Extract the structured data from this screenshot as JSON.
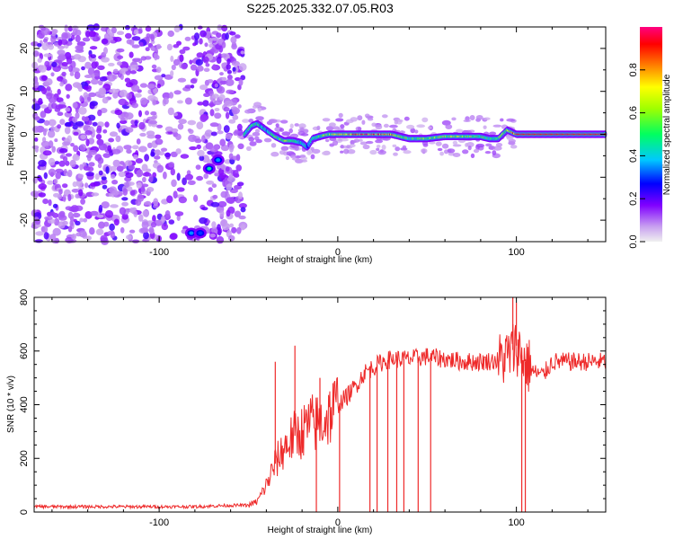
{
  "figure_title": "S225.2025.332.07.05.R03",
  "chart_data": [
    {
      "type": "heatmap",
      "title": "S225.2025.332.07.05.R03",
      "xlabel": "Height of straight line (km)",
      "ylabel": "Frequency (Hz)",
      "xlim": [
        -170,
        150
      ],
      "ylim": [
        -25,
        25
      ],
      "xticks": [
        -100,
        0,
        100
      ],
      "yticks": [
        -20,
        -10,
        0,
        10,
        20
      ],
      "colorbar": {
        "label": "Normalized spectral amplitude",
        "range": [
          0,
          1
        ],
        "ticks": [
          "0.0",
          "0.2",
          "0.4",
          "0.6",
          "0.8"
        ],
        "colormap": [
          "#f0f0f0",
          "#8000ff",
          "#0000ff",
          "#00ffff",
          "#00ff00",
          "#ffff00",
          "#ff0000",
          "#ff00ff"
        ]
      },
      "noise_region_x": [
        -170,
        -53
      ],
      "ridge": {
        "x": [
          -52,
          -48,
          -45,
          -40,
          -35,
          -30,
          -25,
          -20,
          -17,
          -14,
          -10,
          -5,
          0,
          10,
          20,
          30,
          35,
          40,
          50,
          60,
          70,
          80,
          85,
          90,
          95,
          100,
          150
        ],
        "y": [
          0,
          2,
          2.5,
          1,
          -0.5,
          -1.5,
          -1.5,
          -2,
          -3,
          -1,
          -0.5,
          0,
          0,
          0,
          0,
          0,
          -0.5,
          -1,
          -1,
          -0.5,
          -0.5,
          -0.5,
          -1,
          -1,
          1,
          0,
          0
        ],
        "amplitude": [
          0.45,
          0.5,
          0.45,
          0.4,
          0.5,
          0.6,
          0.55,
          0.45,
          0.35,
          0.45,
          0.5,
          0.6,
          0.7,
          0.85,
          0.85,
          0.8,
          0.6,
          0.5,
          0.55,
          0.6,
          0.6,
          0.55,
          0.5,
          0.5,
          0.6,
          0.9,
          0.9
        ]
      },
      "blobs": [
        {
          "x": -72,
          "y": -8,
          "amplitude": 0.45
        },
        {
          "x": -67,
          "y": -6,
          "amplitude": 0.35
        },
        {
          "x": -82,
          "y": -23,
          "amplitude": 0.35
        },
        {
          "x": -77,
          "y": -23,
          "amplitude": 0.3
        }
      ]
    },
    {
      "type": "line",
      "xlabel": "Height of straight line (km)",
      "ylabel": "SNR (10 * v/v)",
      "xlim": [
        -170,
        150
      ],
      "ylim": [
        0,
        800
      ],
      "xticks": [
        -100,
        0,
        100
      ],
      "yticks": [
        0,
        200,
        400,
        600,
        800
      ],
      "series": [
        {
          "name": "SNR",
          "color": "#ee2a2a",
          "x": [
            -170,
            -80,
            -60,
            -50,
            -45,
            -40,
            -35,
            -30,
            -25,
            -20,
            -15,
            -10,
            -5,
            0,
            5,
            10,
            15,
            20,
            25,
            30,
            40,
            50,
            60,
            70,
            80,
            90,
            95,
            100,
            105,
            110,
            115,
            120,
            130,
            140,
            150
          ],
          "values": [
            20,
            20,
            25,
            25,
            40,
            100,
            180,
            240,
            280,
            300,
            330,
            330,
            360,
            400,
            430,
            470,
            520,
            540,
            560,
            570,
            570,
            580,
            570,
            560,
            560,
            565,
            580,
            620,
            560,
            520,
            510,
            560,
            560,
            560,
            560
          ]
        }
      ],
      "dropouts_x": [
        -12,
        1,
        18,
        22,
        28,
        33,
        37,
        45,
        52,
        103,
        105
      ],
      "spikes": [
        {
          "x": -35,
          "value": 560
        },
        {
          "x": -24,
          "value": 620
        },
        {
          "x": -10,
          "value": 500
        },
        {
          "x": 98,
          "value": 800
        },
        {
          "x": 100,
          "value": 780
        }
      ]
    }
  ]
}
